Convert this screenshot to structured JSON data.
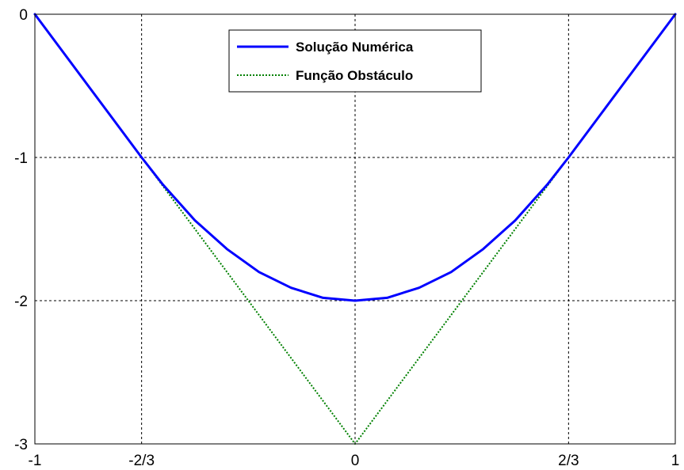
{
  "chart_data": {
    "type": "line",
    "title": "",
    "xlabel": "",
    "ylabel": "",
    "xlim": [
      -1,
      1
    ],
    "ylim": [
      -3,
      0
    ],
    "x_ticks": [
      {
        "value": -1,
        "label": "-1"
      },
      {
        "value": -0.6667,
        "label": "-2/3"
      },
      {
        "value": 0,
        "label": "0"
      },
      {
        "value": 0.6667,
        "label": "2/3"
      },
      {
        "value": 1,
        "label": "1"
      }
    ],
    "y_ticks": [
      {
        "value": 0,
        "label": "0"
      },
      {
        "value": -1,
        "label": "-1"
      },
      {
        "value": -2,
        "label": "-2"
      },
      {
        "value": -3,
        "label": "-3"
      }
    ],
    "grid": true,
    "legend_position": "top-center",
    "series": [
      {
        "name": "Solução Numérica",
        "color": "#0000ff",
        "style": "solid",
        "x": [
          -1,
          -0.6667,
          -0.6,
          -0.5,
          -0.4,
          -0.3,
          -0.2,
          -0.1,
          0,
          0.1,
          0.2,
          0.3,
          0.4,
          0.5,
          0.6,
          0.6667,
          1
        ],
        "y": [
          0,
          -1,
          -1.19,
          -1.44,
          -1.64,
          -1.8,
          -1.91,
          -1.98,
          -2,
          -1.98,
          -1.91,
          -1.8,
          -1.64,
          -1.44,
          -1.19,
          -1,
          0
        ]
      },
      {
        "name": "Função Obstáculo",
        "color": "#008000",
        "style": "dotted",
        "x": [
          -1,
          0,
          1
        ],
        "y": [
          0,
          -3,
          0
        ]
      }
    ]
  }
}
